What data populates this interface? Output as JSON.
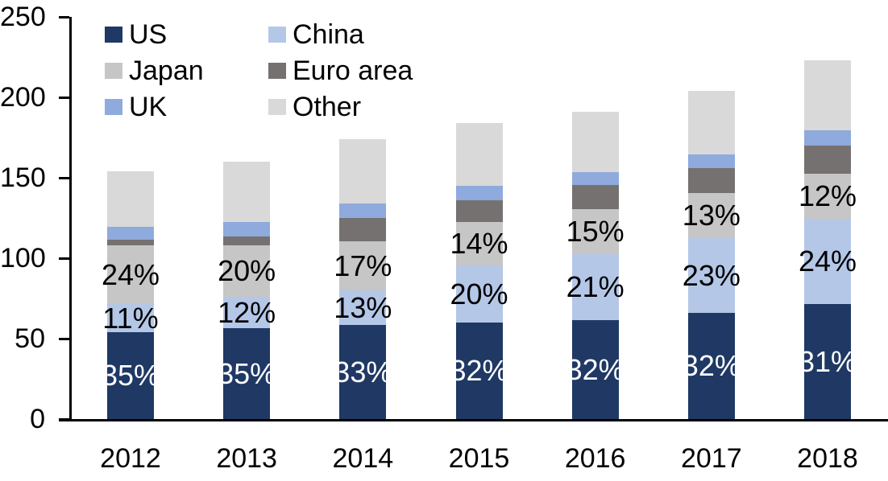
{
  "chart_data": {
    "type": "bar",
    "stacked": true,
    "title": "",
    "categories": [
      "2012",
      "2013",
      "2014",
      "2015",
      "2016",
      "2017",
      "2018"
    ],
    "series": [
      {
        "name": "US",
        "color": "#1f3864",
        "values": [
          54,
          56.5,
          58.5,
          60,
          61.5,
          66,
          71.5
        ],
        "bar_labels": [
          "35%",
          "35%",
          "33%",
          "32%",
          "32%",
          "32%",
          "31%"
        ],
        "bar_label_color": "#ffffff"
      },
      {
        "name": "China",
        "color": "#b4c7e7",
        "values": [
          17.5,
          19.5,
          21.5,
          35.5,
          41,
          46.5,
          53
        ],
        "bar_labels": [
          "11%",
          "12%",
          "13%",
          "20%",
          "21%",
          "23%",
          "24%"
        ],
        "bar_label_color": "#000000"
      },
      {
        "name": "Japan",
        "color": "#c6c6c6",
        "values": [
          36.5,
          32,
          30.5,
          27,
          28,
          28,
          28
        ],
        "bar_labels": [
          "24%",
          "20%",
          "17%",
          "14%",
          "15%",
          "13%",
          "12%"
        ],
        "bar_label_color": "#000000"
      },
      {
        "name": "Euro area",
        "color": "#767171",
        "values": [
          3.5,
          5.5,
          14.5,
          13.5,
          15,
          15.5,
          17.5
        ]
      },
      {
        "name": "UK",
        "color": "#8faadc",
        "values": [
          8,
          9,
          9,
          9,
          8,
          8.5,
          9.5
        ]
      },
      {
        "name": "Other",
        "color": "#d9d9d9",
        "values": [
          34.5,
          37.5,
          40,
          39,
          37.5,
          39.5,
          43.5
        ]
      }
    ],
    "totals": [
      154,
      160,
      174,
      184,
      191,
      204,
      223
    ],
    "y_ticks": [
      0,
      50,
      100,
      150,
      200,
      250
    ],
    "ylim": [
      0,
      250
    ],
    "grid": false,
    "axis_color": "#000000",
    "background": "#ffffff",
    "legend_position": "top-left",
    "legend_columns": 2,
    "legend_order": [
      "US",
      "China",
      "Japan",
      "Euro area",
      "UK",
      "Other"
    ]
  }
}
